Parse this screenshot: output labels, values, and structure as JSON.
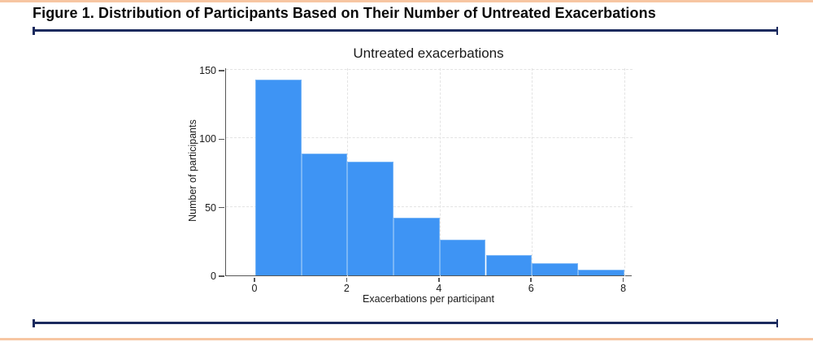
{
  "page": {
    "figure_title": "Figure 1. Distribution of Participants Based on Their Number of Untreated Exacerbations"
  },
  "colors": {
    "accent_salmon": "#f7c6a2",
    "rule_navy": "#1b2a5e",
    "bar_fill": "#3e94f4",
    "bar_edge": "#7ab6f6",
    "axis_line": "#565656",
    "gridline": "#e3e3e3",
    "text": "#1a1a1a"
  },
  "chart_data": {
    "type": "bar",
    "subtype": "histogram",
    "title": "Untreated exacerbations",
    "xlabel": "Exacerbations per participant",
    "ylabel": "Number of participants",
    "bin_edges": [
      0,
      1,
      2,
      3,
      4,
      5,
      6,
      7,
      8
    ],
    "values": [
      143,
      89,
      83,
      42,
      26,
      15,
      9,
      4
    ],
    "x_ticks": [
      0,
      2,
      4,
      6,
      8
    ],
    "y_ticks": [
      0,
      50,
      100,
      150
    ],
    "xlim": [
      0,
      8
    ],
    "ylim": [
      0,
      152
    ],
    "grid": "dashed-both-axes",
    "legend": "none"
  }
}
